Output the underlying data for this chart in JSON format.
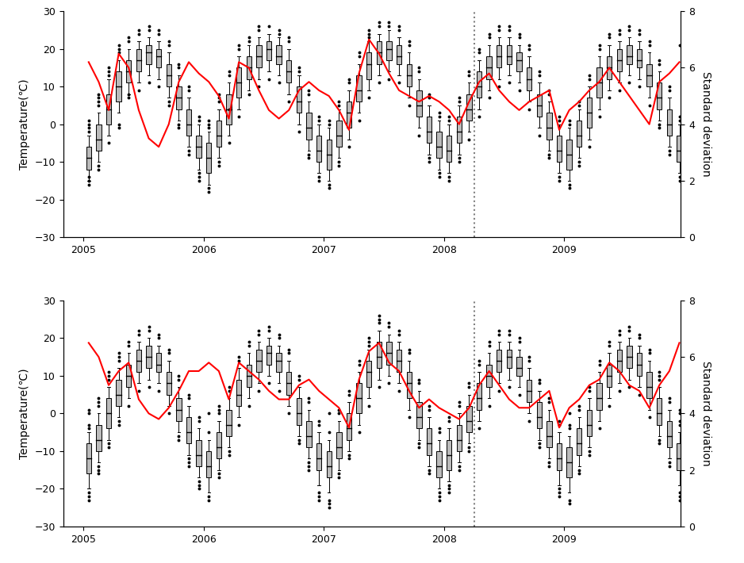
{
  "ylim_temp": [
    -30,
    30
  ],
  "ylim_std": [
    0,
    8
  ],
  "yticks_temp": [
    -30,
    -20,
    -10,
    0,
    10,
    20,
    30
  ],
  "yticks_std": [
    0,
    2,
    4,
    6,
    8
  ],
  "dotted_line_x": 2008.25,
  "ylabel_left": "Temperature(℃)",
  "ylabel_right": "Standard deviation",
  "panel1_std": [
    6.2,
    5.5,
    4.5,
    6.5,
    6.0,
    4.5,
    3.5,
    3.2,
    4.0,
    5.5,
    6.2,
    5.8,
    5.5,
    5.0,
    4.2,
    6.2,
    6.0,
    5.2,
    4.5,
    4.2,
    4.5,
    5.2,
    5.5,
    5.2,
    5.0,
    4.5,
    3.8,
    5.8,
    7.0,
    6.5,
    5.8,
    5.2,
    5.0,
    4.8,
    5.0,
    4.8,
    4.5,
    4.0,
    4.8,
    5.5,
    5.8,
    5.2,
    4.8,
    4.5,
    4.8,
    5.0,
    5.2,
    3.8,
    4.5,
    4.8,
    5.2,
    5.5,
    6.0,
    5.5,
    5.0,
    4.5,
    4.0,
    5.5,
    5.8,
    6.2
  ],
  "panel2_std": [
    6.5,
    6.0,
    5.0,
    5.5,
    5.8,
    4.5,
    4.0,
    3.8,
    4.2,
    4.8,
    5.5,
    5.5,
    5.8,
    5.5,
    4.5,
    5.8,
    5.5,
    5.2,
    4.8,
    4.5,
    4.5,
    5.0,
    5.2,
    4.8,
    4.5,
    4.2,
    3.5,
    5.2,
    6.2,
    6.5,
    5.8,
    5.5,
    4.8,
    4.2,
    4.5,
    4.2,
    4.0,
    3.8,
    4.2,
    5.0,
    5.5,
    5.0,
    4.5,
    4.2,
    4.2,
    4.5,
    4.8,
    3.5,
    4.2,
    4.5,
    5.0,
    5.2,
    5.8,
    5.5,
    5.0,
    4.8,
    4.2,
    5.0,
    5.5,
    6.5
  ],
  "panel1_boxes": [
    [
      2005,
      1,
      -12,
      -9,
      -6,
      -15,
      -3,
      [
        -16,
        -15,
        -14,
        -2,
        -1,
        0,
        1
      ]
    ],
    [
      2005,
      2,
      -7,
      -4,
      0,
      -10,
      3,
      [
        -12,
        -11,
        5,
        6,
        7,
        8
      ]
    ],
    [
      2005,
      3,
      0,
      4,
      8,
      -3,
      12,
      [
        -5,
        13,
        14,
        15
      ]
    ],
    [
      2005,
      4,
      6,
      10,
      14,
      3,
      17,
      [
        -1,
        0,
        19,
        20,
        21
      ]
    ],
    [
      2005,
      5,
      11,
      14,
      17,
      8,
      20,
      [
        7,
        8,
        22,
        23
      ]
    ],
    [
      2005,
      6,
      14,
      17,
      20,
      11,
      22,
      [
        9,
        24,
        25
      ]
    ],
    [
      2005,
      7,
      16,
      19,
      21,
      13,
      23,
      [
        11,
        25,
        26
      ]
    ],
    [
      2005,
      8,
      15,
      18,
      20,
      12,
      22,
      [
        10,
        24,
        25
      ]
    ],
    [
      2005,
      9,
      10,
      13,
      16,
      7,
      19,
      [
        5,
        6,
        21,
        22
      ]
    ],
    [
      2005,
      10,
      4,
      7,
      10,
      1,
      13,
      [
        -1,
        0,
        15,
        16
      ]
    ],
    [
      2005,
      11,
      -3,
      0,
      4,
      -6,
      7,
      [
        -8,
        -7,
        9,
        10
      ]
    ],
    [
      2005,
      12,
      -9,
      -6,
      -3,
      -12,
      0,
      [
        -14,
        -13,
        -15,
        1,
        2
      ]
    ],
    [
      2006,
      1,
      -13,
      -9,
      -5,
      -16,
      -2,
      [
        -18,
        -17,
        -1,
        0,
        1
      ]
    ],
    [
      2006,
      2,
      -6,
      -3,
      1,
      -9,
      4,
      [
        -11,
        -10,
        6,
        7,
        8
      ]
    ],
    [
      2006,
      3,
      0,
      4,
      8,
      -3,
      11,
      [
        13,
        14,
        -5,
        4
      ]
    ],
    [
      2006,
      4,
      7,
      11,
      15,
      4,
      18,
      [
        2,
        20,
        21
      ]
    ],
    [
      2006,
      5,
      12,
      15,
      18,
      9,
      21,
      [
        8,
        22,
        23
      ]
    ],
    [
      2006,
      6,
      15,
      18,
      21,
      12,
      23,
      [
        10,
        25,
        26
      ]
    ],
    [
      2006,
      7,
      17,
      20,
      22,
      14,
      24,
      [
        12,
        26
      ]
    ],
    [
      2006,
      8,
      16,
      18,
      21,
      13,
      23,
      [
        11,
        24,
        25
      ]
    ],
    [
      2006,
      9,
      11,
      14,
      17,
      8,
      20,
      [
        6,
        22,
        23
      ]
    ],
    [
      2006,
      10,
      3,
      6,
      10,
      0,
      13,
      [
        -2,
        14,
        15
      ]
    ],
    [
      2006,
      11,
      -4,
      -1,
      3,
      -7,
      6,
      [
        -9,
        -8,
        8,
        9
      ]
    ],
    [
      2006,
      12,
      -10,
      -7,
      -3,
      -13,
      0,
      [
        -15,
        -14,
        1,
        2
      ]
    ],
    [
      2007,
      1,
      -12,
      -8,
      -4,
      -15,
      -1,
      [
        -17,
        -16,
        0,
        1
      ]
    ],
    [
      2007,
      2,
      -6,
      -3,
      1,
      -9,
      4,
      [
        -11,
        -10,
        5,
        6
      ]
    ],
    [
      2007,
      3,
      -1,
      3,
      6,
      -4,
      9,
      [
        -6,
        11,
        12
      ]
    ],
    [
      2007,
      4,
      6,
      9,
      13,
      3,
      16,
      [
        1,
        18,
        19
      ]
    ],
    [
      2007,
      5,
      12,
      16,
      19,
      9,
      22,
      [
        7,
        23,
        24,
        25
      ]
    ],
    [
      2007,
      6,
      16,
      19,
      22,
      13,
      24,
      [
        11,
        26,
        27
      ]
    ],
    [
      2007,
      7,
      17,
      20,
      22,
      14,
      25,
      [
        12,
        26,
        27
      ]
    ],
    [
      2007,
      8,
      16,
      18,
      21,
      13,
      23,
      [
        11,
        25,
        26
      ]
    ],
    [
      2007,
      9,
      10,
      13,
      16,
      7,
      19,
      [
        5,
        21,
        22
      ]
    ],
    [
      2007,
      10,
      2,
      5,
      9,
      -1,
      12,
      [
        -3,
        14,
        15
      ]
    ],
    [
      2007,
      11,
      -5,
      -2,
      2,
      -8,
      5,
      [
        -10,
        -9,
        7,
        8
      ]
    ],
    [
      2007,
      12,
      -9,
      -6,
      -2,
      -12,
      1,
      [
        -14,
        -13,
        2,
        3
      ]
    ],
    [
      2008,
      1,
      -10,
      -7,
      -3,
      -13,
      0,
      [
        -15,
        -14,
        1,
        2
      ]
    ],
    [
      2008,
      2,
      -5,
      -2,
      2,
      -8,
      5,
      [
        -10,
        -9,
        6,
        7
      ]
    ],
    [
      2008,
      3,
      1,
      4,
      8,
      -2,
      11,
      [
        -4,
        13,
        14
      ]
    ],
    [
      2008,
      4,
      7,
      10,
      14,
      4,
      17,
      [
        2,
        19,
        20
      ]
    ],
    [
      2008,
      5,
      12,
      15,
      18,
      9,
      21,
      [
        7,
        23,
        24
      ]
    ],
    [
      2008,
      6,
      15,
      18,
      21,
      12,
      23,
      [
        10,
        25,
        26
      ]
    ],
    [
      2008,
      7,
      16,
      18,
      21,
      13,
      23,
      [
        11,
        25,
        26
      ]
    ],
    [
      2008,
      8,
      14,
      17,
      19,
      11,
      21,
      [
        9,
        23,
        24
      ]
    ],
    [
      2008,
      9,
      9,
      12,
      15,
      6,
      18,
      [
        4,
        20,
        21
      ]
    ],
    [
      2008,
      10,
      2,
      5,
      8,
      -1,
      11,
      [
        -3,
        13,
        14
      ]
    ],
    [
      2008,
      11,
      -4,
      -1,
      3,
      -7,
      6,
      [
        -9,
        -8,
        8,
        9
      ]
    ],
    [
      2008,
      12,
      -10,
      -7,
      -3,
      -13,
      0,
      [
        -15,
        -14,
        1,
        2
      ]
    ],
    [
      2009,
      1,
      -12,
      -8,
      -4,
      -15,
      -1,
      [
        -17,
        -16,
        0,
        1
      ]
    ],
    [
      2009,
      2,
      -6,
      -3,
      1,
      -9,
      4,
      [
        -11,
        -10,
        5,
        6
      ]
    ],
    [
      2009,
      3,
      -1,
      3,
      7,
      -4,
      10,
      [
        -6,
        12,
        13
      ]
    ],
    [
      2009,
      4,
      7,
      11,
      15,
      4,
      18,
      [
        2,
        20,
        21
      ]
    ],
    [
      2009,
      5,
      12,
      15,
      18,
      9,
      21,
      [
        7,
        23,
        24
      ]
    ],
    [
      2009,
      6,
      14,
      17,
      20,
      11,
      22,
      [
        9,
        24,
        25
      ]
    ],
    [
      2009,
      7,
      16,
      18,
      21,
      13,
      23,
      [
        11,
        25,
        26
      ]
    ],
    [
      2009,
      8,
      15,
      17,
      20,
      12,
      22,
      [
        10,
        24,
        25
      ]
    ],
    [
      2009,
      9,
      10,
      13,
      16,
      7,
      19,
      [
        5,
        21,
        22
      ]
    ],
    [
      2009,
      10,
      4,
      7,
      11,
      1,
      14,
      [
        -1,
        0,
        16,
        17
      ]
    ],
    [
      2009,
      11,
      -3,
      0,
      4,
      -6,
      7,
      [
        -8,
        -7,
        9,
        10
      ]
    ],
    [
      2009,
      12,
      -10,
      -7,
      -3,
      -13,
      0,
      [
        -15,
        -14,
        1,
        2,
        21
      ]
    ]
  ],
  "panel2_boxes": [
    [
      2005,
      1,
      -16,
      -12,
      -8,
      -20,
      -5,
      [
        -22,
        -21,
        -23,
        0,
        1,
        -3,
        -4
      ]
    ],
    [
      2005,
      2,
      -10,
      -7,
      -3,
      -13,
      0,
      [
        -15,
        -14,
        -16,
        2,
        3,
        4
      ]
    ],
    [
      2005,
      3,
      -4,
      0,
      4,
      -7,
      7,
      [
        -9,
        -8,
        9,
        10,
        11
      ]
    ],
    [
      2005,
      4,
      2,
      5,
      9,
      -1,
      12,
      [
        -3,
        -2,
        14,
        15,
        16
      ]
    ],
    [
      2005,
      5,
      7,
      10,
      13,
      4,
      16,
      [
        2,
        18,
        19
      ]
    ],
    [
      2005,
      6,
      11,
      14,
      17,
      8,
      19,
      [
        6,
        21,
        22
      ]
    ],
    [
      2005,
      7,
      12,
      15,
      18,
      9,
      20,
      [
        7,
        22,
        23
      ]
    ],
    [
      2005,
      8,
      11,
      13,
      16,
      8,
      18,
      [
        6,
        20,
        21
      ]
    ],
    [
      2005,
      9,
      5,
      8,
      11,
      2,
      14,
      [
        0,
        16,
        17
      ]
    ],
    [
      2005,
      10,
      -2,
      1,
      4,
      -5,
      7,
      [
        -7,
        -6,
        9,
        10
      ]
    ],
    [
      2005,
      11,
      -8,
      -5,
      -1,
      -11,
      2,
      [
        -13,
        -12,
        -14,
        4,
        5
      ]
    ],
    [
      2005,
      12,
      -14,
      -11,
      -7,
      -17,
      -4,
      [
        -19,
        -18,
        -20,
        -2,
        -1
      ]
    ],
    [
      2006,
      1,
      -17,
      -14,
      -10,
      -21,
      -7,
      [
        -23,
        -22,
        0,
        -5
      ]
    ],
    [
      2006,
      2,
      -12,
      -9,
      -5,
      -15,
      -2,
      [
        -17,
        -16,
        0,
        1,
        2
      ]
    ],
    [
      2006,
      3,
      -6,
      -3,
      1,
      -9,
      4,
      [
        -11,
        -10,
        6,
        7
      ]
    ],
    [
      2006,
      4,
      2,
      5,
      9,
      -1,
      12,
      [
        -3,
        14,
        15
      ]
    ],
    [
      2006,
      5,
      7,
      10,
      13,
      4,
      16,
      [
        2,
        18,
        19
      ]
    ],
    [
      2006,
      6,
      11,
      14,
      17,
      8,
      19,
      [
        6,
        21,
        22
      ]
    ],
    [
      2006,
      7,
      13,
      16,
      18,
      10,
      20,
      [
        8,
        22,
        23
      ]
    ],
    [
      2006,
      8,
      11,
      14,
      16,
      8,
      18,
      [
        6,
        20,
        21
      ]
    ],
    [
      2006,
      9,
      5,
      8,
      11,
      2,
      14,
      [
        0,
        16,
        17
      ]
    ],
    [
      2006,
      10,
      -3,
      0,
      4,
      -6,
      7,
      [
        -8,
        -7,
        9,
        10
      ]
    ],
    [
      2006,
      11,
      -9,
      -6,
      -2,
      -12,
      1,
      [
        -14,
        -13,
        -15,
        3,
        4
      ]
    ],
    [
      2006,
      12,
      -15,
      -12,
      -8,
      -19,
      -5,
      [
        -22,
        -21,
        -23,
        -3,
        -2
      ]
    ],
    [
      2007,
      1,
      -17,
      -14,
      -10,
      -21,
      -7,
      [
        -24,
        -23,
        -25,
        0,
        -5
      ]
    ],
    [
      2007,
      2,
      -12,
      -9,
      -5,
      -15,
      -2,
      [
        -17,
        -16,
        0,
        1
      ]
    ],
    [
      2007,
      3,
      -7,
      -4,
      0,
      -10,
      3,
      [
        -12,
        -11,
        5,
        6
      ]
    ],
    [
      2007,
      4,
      0,
      4,
      8,
      -3,
      11,
      [
        -5,
        13,
        14
      ]
    ],
    [
      2007,
      5,
      7,
      11,
      14,
      4,
      17,
      [
        2,
        19,
        20,
        18
      ]
    ],
    [
      2007,
      6,
      12,
      15,
      19,
      9,
      22,
      [
        7,
        24,
        25,
        26
      ]
    ],
    [
      2007,
      7,
      13,
      16,
      19,
      10,
      21,
      [
        8,
        23,
        24
      ]
    ],
    [
      2007,
      8,
      11,
      14,
      17,
      8,
      19,
      [
        6,
        21,
        22
      ]
    ],
    [
      2007,
      9,
      4,
      8,
      11,
      1,
      14,
      [
        -1,
        16,
        17
      ]
    ],
    [
      2007,
      10,
      -4,
      -1,
      3,
      -7,
      6,
      [
        -9,
        -8,
        8,
        9
      ]
    ],
    [
      2007,
      11,
      -11,
      -8,
      -4,
      -14,
      -1,
      [
        -16,
        -15,
        1,
        2
      ]
    ],
    [
      2007,
      12,
      -17,
      -14,
      -10,
      -20,
      -7,
      [
        -22,
        -21,
        -23,
        -5,
        -4
      ]
    ],
    [
      2008,
      1,
      -15,
      -11,
      -7,
      -18,
      -4,
      [
        -20,
        -19,
        -21,
        -2,
        -1
      ]
    ],
    [
      2008,
      2,
      -10,
      -7,
      -3,
      -13,
      0,
      [
        -15,
        -14,
        2,
        3
      ]
    ],
    [
      2008,
      3,
      -5,
      -2,
      2,
      -8,
      5,
      [
        -10,
        -9,
        7,
        8
      ]
    ],
    [
      2008,
      4,
      1,
      4,
      8,
      -2,
      11,
      [
        -4,
        13,
        14
      ]
    ],
    [
      2008,
      5,
      7,
      10,
      13,
      4,
      16,
      [
        2,
        18,
        19
      ]
    ],
    [
      2008,
      6,
      11,
      14,
      17,
      8,
      19,
      [
        6,
        21,
        22
      ]
    ],
    [
      2008,
      7,
      12,
      15,
      17,
      9,
      19,
      [
        7,
        21,
        22
      ]
    ],
    [
      2008,
      8,
      10,
      12,
      15,
      7,
      17,
      [
        5,
        19,
        20
      ]
    ],
    [
      2008,
      9,
      3,
      6,
      9,
      0,
      12,
      [
        -2,
        14,
        15
      ]
    ],
    [
      2008,
      10,
      -4,
      -1,
      3,
      -7,
      6,
      [
        -9,
        -8,
        8,
        9
      ]
    ],
    [
      2008,
      11,
      -9,
      -6,
      -2,
      -12,
      1,
      [
        -14,
        -13,
        3,
        4
      ]
    ],
    [
      2008,
      12,
      -15,
      -12,
      -8,
      -19,
      -5,
      [
        -21,
        -22,
        -20,
        -3,
        -2
      ]
    ],
    [
      2009,
      1,
      -17,
      -13,
      -9,
      -21,
      -6,
      [
        -24,
        -23,
        0,
        -4,
        -3
      ]
    ],
    [
      2009,
      2,
      -11,
      -8,
      -4,
      -14,
      -1,
      [
        -16,
        -15,
        1,
        2
      ]
    ],
    [
      2009,
      3,
      -6,
      -3,
      1,
      -9,
      4,
      [
        -11,
        -10,
        6,
        7
      ]
    ],
    [
      2009,
      4,
      1,
      4,
      8,
      -2,
      11,
      [
        -4,
        13,
        14
      ]
    ],
    [
      2009,
      5,
      7,
      10,
      13,
      4,
      16,
      [
        2,
        18,
        19
      ]
    ],
    [
      2009,
      6,
      11,
      14,
      17,
      8,
      19,
      [
        6,
        21,
        22
      ]
    ],
    [
      2009,
      7,
      12,
      15,
      18,
      9,
      20,
      [
        7,
        22,
        23
      ]
    ],
    [
      2009,
      8,
      10,
      13,
      16,
      7,
      18,
      [
        5,
        20,
        21
      ]
    ],
    [
      2009,
      9,
      4,
      7,
      11,
      1,
      14,
      [
        -1,
        16,
        17
      ]
    ],
    [
      2009,
      10,
      -3,
      0,
      4,
      -6,
      7,
      [
        -8,
        -7,
        9,
        10,
        11
      ]
    ],
    [
      2009,
      11,
      -9,
      -6,
      -2,
      -12,
      1,
      [
        -14,
        -13,
        3,
        4
      ]
    ],
    [
      2009,
      12,
      -15,
      -12,
      -8,
      -19,
      -5,
      [
        -21,
        -22,
        -23,
        -3,
        -2,
        0,
        1
      ]
    ]
  ]
}
